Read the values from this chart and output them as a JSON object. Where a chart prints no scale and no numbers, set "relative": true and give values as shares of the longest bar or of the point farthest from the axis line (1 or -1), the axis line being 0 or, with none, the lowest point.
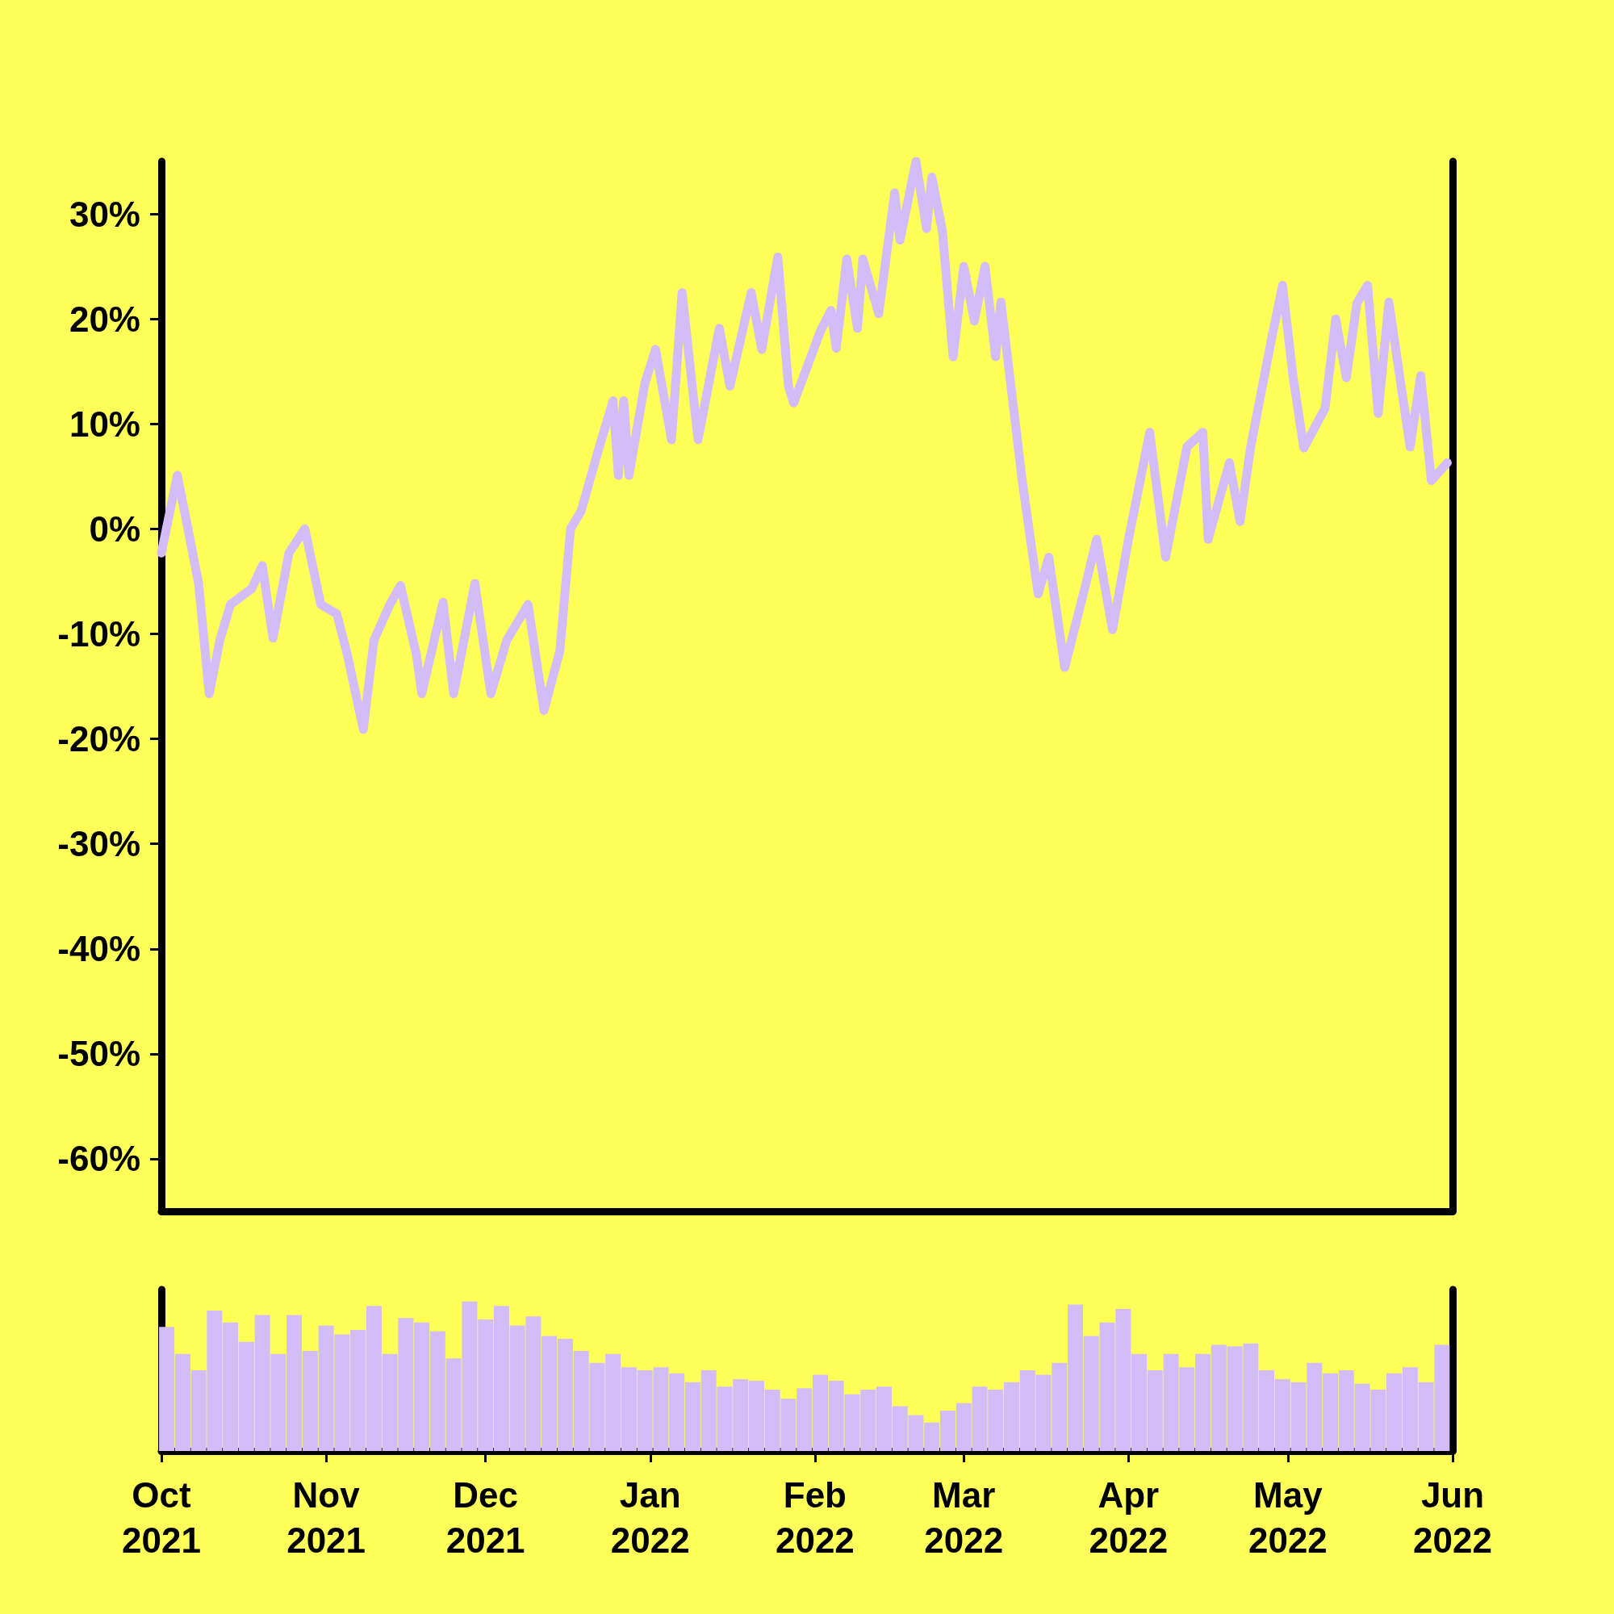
{
  "chart_data": [
    {
      "type": "line",
      "color": "#d3bdf8",
      "tick_labels": "y",
      "xlim": [
        "2021-10-01",
        "2022-06-01"
      ],
      "ylim": [
        -65,
        35
      ],
      "yticks": [
        {
          "value": -60,
          "label": "-60%"
        },
        {
          "value": -50,
          "label": "-50%"
        },
        {
          "value": -40,
          "label": "-40%"
        },
        {
          "value": -30,
          "label": "-30%"
        },
        {
          "value": -20,
          "label": "-20%"
        },
        {
          "value": -10,
          "label": "-10%"
        },
        {
          "value": 0,
          "label": "0%"
        },
        {
          "value": 10,
          "label": "10%"
        },
        {
          "value": 20,
          "label": "20%"
        },
        {
          "value": 30,
          "label": "30%"
        }
      ],
      "x": [
        "2021-10-01",
        "2021-10-04",
        "2021-10-06",
        "2021-10-08",
        "2021-10-10",
        "2021-10-12",
        "2021-10-14",
        "2021-10-18",
        "2021-10-20",
        "2021-10-22",
        "2021-10-25",
        "2021-10-28",
        "2021-10-31",
        "2021-11-03",
        "2021-11-05",
        "2021-11-08",
        "2021-11-10",
        "2021-11-13",
        "2021-11-15",
        "2021-11-18",
        "2021-11-19",
        "2021-11-23",
        "2021-11-25",
        "2021-11-29",
        "2021-12-02",
        "2021-12-05",
        "2021-12-09",
        "2021-12-12",
        "2021-12-15",
        "2021-12-17",
        "2021-12-19",
        "2021-12-22",
        "2021-12-25",
        "2021-12-26",
        "2021-12-27",
        "2021-12-28",
        "2021-12-31",
        "2022-01-02",
        "2022-01-05",
        "2022-01-07",
        "2022-01-10",
        "2022-01-14",
        "2022-01-16",
        "2022-01-20",
        "2022-01-22",
        "2022-01-25",
        "2022-01-27",
        "2022-01-28",
        "2022-02-02",
        "2022-02-04",
        "2022-02-05",
        "2022-02-07",
        "2022-02-09",
        "2022-02-10",
        "2022-02-13",
        "2022-02-16",
        "2022-02-17",
        "2022-02-20",
        "2022-02-22",
        "2022-02-23",
        "2022-02-25",
        "2022-02-27",
        "2022-03-01",
        "2022-03-03",
        "2022-03-05",
        "2022-03-07",
        "2022-03-08",
        "2022-03-12",
        "2022-03-15",
        "2022-03-17",
        "2022-03-20",
        "2022-03-24",
        "2022-03-26",
        "2022-03-29",
        "2022-04-01",
        "2022-04-05",
        "2022-04-08",
        "2022-04-12",
        "2022-04-15",
        "2022-04-16",
        "2022-04-20",
        "2022-04-22",
        "2022-04-24",
        "2022-04-28",
        "2022-04-30",
        "2022-05-02",
        "2022-05-04",
        "2022-05-08",
        "2022-05-10",
        "2022-05-12",
        "2022-05-14",
        "2022-05-16",
        "2022-05-18",
        "2022-05-20",
        "2022-05-24",
        "2022-05-26",
        "2022-05-28",
        "2022-05-31"
      ],
      "values": [
        -2.3,
        5.1,
        0,
        -5.2,
        -15.7,
        -10.6,
        -7.2,
        -5.7,
        -3.5,
        -10.4,
        -2.3,
        0,
        -7.2,
        -8.1,
        -12,
        -19.1,
        -10.6,
        -7.2,
        -5.4,
        -12,
        -15.7,
        -7,
        -15.7,
        -5.2,
        -15.7,
        -10.6,
        -7.2,
        -17.3,
        -11.6,
        0,
        1.7,
        7.1,
        12.2,
        5.1,
        12.2,
        5.1,
        13.9,
        17.1,
        8.5,
        22.5,
        8.5,
        19.1,
        13.6,
        22.5,
        17.1,
        25.9,
        13.6,
        12,
        18.8,
        20.8,
        17.2,
        25.7,
        19.1,
        25.7,
        20.5,
        32,
        27.5,
        35,
        28.6,
        33.5,
        28.3,
        16.4,
        25,
        19.8,
        25,
        16.4,
        21.6,
        4.6,
        -6.2,
        -2.7,
        -13.2,
        -5.2,
        -1,
        -9.6,
        -1,
        9.2,
        -2.7,
        7.8,
        9.2,
        -1,
        6.3,
        0.7,
        7.8,
        18.3,
        23.2,
        14.4,
        7.7,
        11.5,
        20,
        14.4,
        21.5,
        23.2,
        11,
        21.6,
        7.8,
        14.6,
        4.6,
        6.3
      ]
    },
    {
      "type": "bar",
      "color": "#d3bdf8",
      "relative": true,
      "tick_labels": "x",
      "xlim": [
        "2021-10-01",
        "2022-06-01"
      ],
      "xticks": [
        {
          "value": "2021-10-01",
          "label": "Oct\n2021"
        },
        {
          "value": "2021-11-01",
          "label": "Nov\n2021"
        },
        {
          "value": "2021-12-01",
          "label": "Dec\n2021"
        },
        {
          "value": "2022-01-01",
          "label": "Jan\n2022"
        },
        {
          "value": "2022-02-01",
          "label": "Feb\n2022"
        },
        {
          "value": "2022-03-01",
          "label": "Mar\n2022"
        },
        {
          "value": "2022-04-01",
          "label": "Apr\n2022"
        },
        {
          "value": "2022-05-01",
          "label": "May\n2022"
        },
        {
          "value": "2022-06-01",
          "label": "Jun\n2022"
        }
      ],
      "x": [
        "2021-10-02",
        "2021-10-05",
        "2021-10-08",
        "2021-10-11",
        "2021-10-14",
        "2021-10-17",
        "2021-10-20",
        "2021-10-23",
        "2021-10-26",
        "2021-10-29",
        "2021-11-01",
        "2021-11-04",
        "2021-11-07",
        "2021-11-10",
        "2021-11-13",
        "2021-11-16",
        "2021-11-19",
        "2021-11-22",
        "2021-11-25",
        "2021-11-28",
        "2021-12-01",
        "2021-12-04",
        "2021-12-07",
        "2021-12-10",
        "2021-12-13",
        "2021-12-16",
        "2021-12-19",
        "2021-12-22",
        "2021-12-25",
        "2021-12-28",
        "2021-12-31",
        "2022-01-03",
        "2022-01-06",
        "2022-01-09",
        "2022-01-12",
        "2022-01-15",
        "2022-01-18",
        "2022-01-21",
        "2022-01-24",
        "2022-01-27",
        "2022-01-30",
        "2022-02-02",
        "2022-02-05",
        "2022-02-08",
        "2022-02-11",
        "2022-02-14",
        "2022-02-17",
        "2022-02-20",
        "2022-02-23",
        "2022-02-26",
        "2022-03-01",
        "2022-03-04",
        "2022-03-07",
        "2022-03-10",
        "2022-03-13",
        "2022-03-16",
        "2022-03-19",
        "2022-03-22",
        "2022-03-25",
        "2022-03-28",
        "2022-03-31",
        "2022-04-03",
        "2022-04-06",
        "2022-04-09",
        "2022-04-12",
        "2022-04-15",
        "2022-04-18",
        "2022-04-21",
        "2022-04-24",
        "2022-04-27",
        "2022-04-30",
        "2022-05-03",
        "2022-05-06",
        "2022-05-09",
        "2022-05-12",
        "2022-05-15",
        "2022-05-18",
        "2022-05-21",
        "2022-05-24",
        "2022-05-27",
        "2022-05-30"
      ],
      "values": [
        0.83,
        0.65,
        0.54,
        0.94,
        0.86,
        0.73,
        0.91,
        0.65,
        0.91,
        0.67,
        0.84,
        0.78,
        0.81,
        0.97,
        0.65,
        0.89,
        0.86,
        0.8,
        0.62,
        1,
        0.88,
        0.97,
        0.84,
        0.9,
        0.77,
        0.75,
        0.67,
        0.59,
        0.65,
        0.56,
        0.54,
        0.56,
        0.52,
        0.46,
        0.54,
        0.43,
        0.48,
        0.47,
        0.41,
        0.35,
        0.42,
        0.51,
        0.47,
        0.38,
        0.41,
        0.43,
        0.3,
        0.24,
        0.19,
        0.27,
        0.32,
        0.43,
        0.41,
        0.46,
        0.54,
        0.51,
        0.59,
        0.98,
        0.77,
        0.86,
        0.95,
        0.65,
        0.54,
        0.65,
        0.56,
        0.65,
        0.71,
        0.7,
        0.72,
        0.54,
        0.48,
        0.46,
        0.59,
        0.52,
        0.54,
        0.45,
        0.41,
        0.52,
        0.56,
        0.46,
        0.71
      ]
    }
  ]
}
